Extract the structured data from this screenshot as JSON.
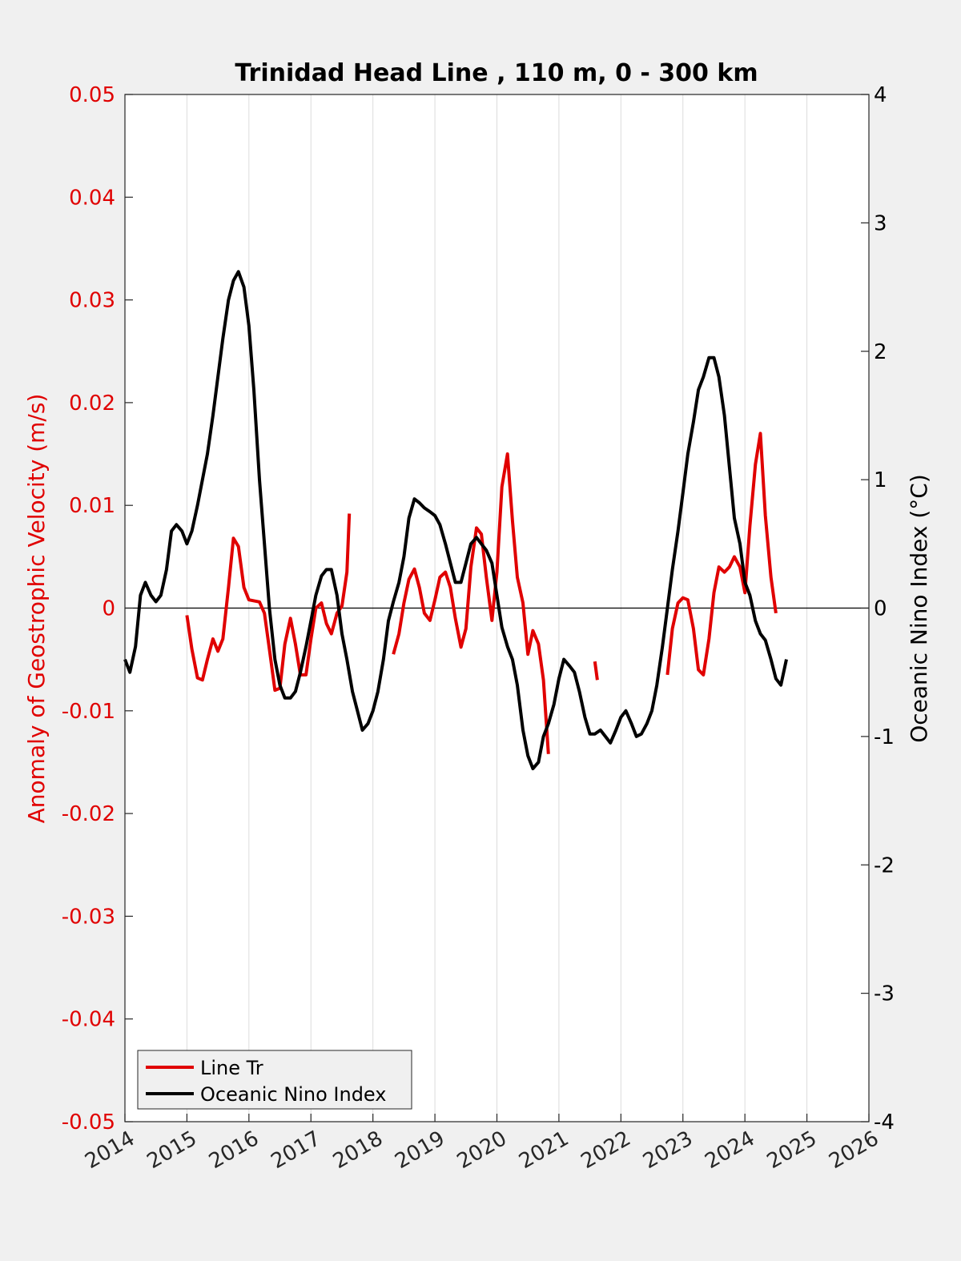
{
  "chart_data": {
    "type": "line",
    "title": "Trinidad Head Line , 110 m, 0 - 300 km",
    "xlabel": "",
    "ylabel_left": "Anomaly of Geostrophic Velocity (m/s)",
    "ylabel_right": "Oceanic Nino Index (°C)",
    "xlim": [
      2014,
      2026
    ],
    "ylim_left": [
      -0.05,
      0.05
    ],
    "ylim_right": [
      -4,
      4
    ],
    "x_ticks": [
      "2014",
      "2015",
      "2016",
      "2017",
      "2018",
      "2019",
      "2020",
      "2021",
      "2022",
      "2023",
      "2024",
      "2025",
      "2026"
    ],
    "y_ticks_left": [
      "-0.05",
      "-0.04",
      "-0.03",
      "-0.02",
      "-0.01",
      "0",
      "0.01",
      "0.02",
      "0.03",
      "0.04",
      "0.05"
    ],
    "y_ticks_right": [
      "-4",
      "-3",
      "-2",
      "-1",
      "0",
      "1",
      "2",
      "3",
      "4"
    ],
    "grid": "vertical",
    "legend_position": "bottom-left",
    "colors": {
      "left_axis": "#e00000",
      "right_axis": "#000000"
    },
    "series": [
      {
        "name": "Line Tr",
        "color": "#e00000",
        "axis": "left",
        "segments": [
          [
            [
              2015.0,
              -0.0007
            ],
            [
              2015.08,
              -0.004
            ],
            [
              2015.17,
              -0.0068
            ],
            [
              2015.25,
              -0.007
            ],
            [
              2015.33,
              -0.005
            ],
            [
              2015.42,
              -0.003
            ],
            [
              2015.5,
              -0.0042
            ],
            [
              2015.58,
              -0.003
            ],
            [
              2015.67,
              0.002
            ],
            [
              2015.75,
              0.0068
            ],
            [
              2015.83,
              0.006
            ],
            [
              2015.92,
              0.002
            ],
            [
              2016.0,
              0.0008
            ],
            [
              2016.17,
              0.0006
            ],
            [
              2016.25,
              -0.0005
            ],
            [
              2016.33,
              -0.004
            ],
            [
              2016.42,
              -0.008
            ],
            [
              2016.5,
              -0.0078
            ],
            [
              2016.58,
              -0.0035
            ],
            [
              2016.67,
              -0.001
            ],
            [
              2016.75,
              -0.0035
            ],
            [
              2016.83,
              -0.0065
            ],
            [
              2016.92,
              -0.0065
            ],
            [
              2017.0,
              -0.003
            ],
            [
              2017.08,
              0.0
            ],
            [
              2017.17,
              0.0005
            ],
            [
              2017.25,
              -0.0015
            ],
            [
              2017.33,
              -0.0025
            ],
            [
              2017.42,
              -0.0005
            ],
            [
              2017.5,
              0.0002
            ],
            [
              2017.58,
              0.0035
            ],
            [
              2017.62,
              0.0092
            ]
          ],
          [
            [
              2018.33,
              -0.0045
            ],
            [
              2018.42,
              -0.0025
            ],
            [
              2018.5,
              0.0005
            ],
            [
              2018.58,
              0.0028
            ],
            [
              2018.67,
              0.0038
            ],
            [
              2018.75,
              0.002
            ],
            [
              2018.83,
              -0.0005
            ],
            [
              2018.92,
              -0.0012
            ],
            [
              2019.0,
              0.0008
            ],
            [
              2019.08,
              0.003
            ],
            [
              2019.17,
              0.0035
            ],
            [
              2019.25,
              0.002
            ],
            [
              2019.33,
              -0.001
            ],
            [
              2019.42,
              -0.0038
            ],
            [
              2019.5,
              -0.002
            ],
            [
              2019.58,
              0.004
            ],
            [
              2019.67,
              0.0078
            ],
            [
              2019.75,
              0.0072
            ],
            [
              2019.83,
              0.003
            ],
            [
              2019.92,
              -0.0012
            ],
            [
              2020.0,
              0.0035
            ],
            [
              2020.08,
              0.0118
            ],
            [
              2020.17,
              0.015
            ],
            [
              2020.25,
              0.0085
            ],
            [
              2020.33,
              0.003
            ],
            [
              2020.42,
              0.0005
            ],
            [
              2020.5,
              -0.0045
            ],
            [
              2020.58,
              -0.0022
            ],
            [
              2020.67,
              -0.0035
            ],
            [
              2020.75,
              -0.007
            ],
            [
              2020.83,
              -0.0142
            ]
          ],
          [
            [
              2021.58,
              -0.0052
            ],
            [
              2021.62,
              -0.007
            ]
          ],
          [
            [
              2022.75,
              -0.0065
            ],
            [
              2022.83,
              -0.002
            ],
            [
              2022.92,
              0.0005
            ],
            [
              2023.0,
              0.001
            ],
            [
              2023.08,
              0.0008
            ],
            [
              2023.17,
              -0.002
            ],
            [
              2023.25,
              -0.006
            ],
            [
              2023.33,
              -0.0065
            ],
            [
              2023.42,
              -0.003
            ],
            [
              2023.5,
              0.0015
            ],
            [
              2023.58,
              0.004
            ],
            [
              2023.67,
              0.0035
            ],
            [
              2023.75,
              0.004
            ],
            [
              2023.83,
              0.005
            ],
            [
              2023.92,
              0.004
            ],
            [
              2024.0,
              0.0015
            ],
            [
              2024.08,
              0.008
            ],
            [
              2024.17,
              0.014
            ],
            [
              2024.25,
              0.017
            ],
            [
              2024.33,
              0.009
            ],
            [
              2024.42,
              0.003
            ],
            [
              2024.5,
              -0.0005
            ]
          ]
        ]
      },
      {
        "name": "Oceanic Nino Index",
        "color": "#000000",
        "axis": "right",
        "segments": [
          [
            [
              2014.0,
              -0.4
            ],
            [
              2014.08,
              -0.5
            ],
            [
              2014.17,
              -0.3
            ],
            [
              2014.25,
              0.1
            ],
            [
              2014.33,
              0.2
            ],
            [
              2014.42,
              0.1
            ],
            [
              2014.5,
              0.05
            ],
            [
              2014.58,
              0.1
            ],
            [
              2014.67,
              0.3
            ],
            [
              2014.75,
              0.6
            ],
            [
              2014.83,
              0.65
            ],
            [
              2014.92,
              0.6
            ],
            [
              2015.0,
              0.5
            ],
            [
              2015.08,
              0.6
            ],
            [
              2015.17,
              0.8
            ],
            [
              2015.25,
              1.0
            ],
            [
              2015.33,
              1.2
            ],
            [
              2015.42,
              1.5
            ],
            [
              2015.5,
              1.8
            ],
            [
              2015.58,
              2.1
            ],
            [
              2015.67,
              2.4
            ],
            [
              2015.75,
              2.55
            ],
            [
              2015.83,
              2.62
            ],
            [
              2015.92,
              2.5
            ],
            [
              2016.0,
              2.2
            ],
            [
              2016.08,
              1.7
            ],
            [
              2016.17,
              1.0
            ],
            [
              2016.25,
              0.5
            ],
            [
              2016.33,
              0.0
            ],
            [
              2016.42,
              -0.4
            ],
            [
              2016.5,
              -0.6
            ],
            [
              2016.58,
              -0.7
            ],
            [
              2016.67,
              -0.7
            ],
            [
              2016.75,
              -0.65
            ],
            [
              2016.83,
              -0.5
            ],
            [
              2016.92,
              -0.3
            ],
            [
              2017.0,
              -0.1
            ],
            [
              2017.08,
              0.1
            ],
            [
              2017.17,
              0.25
            ],
            [
              2017.25,
              0.3
            ],
            [
              2017.33,
              0.3
            ],
            [
              2017.42,
              0.1
            ],
            [
              2017.5,
              -0.2
            ],
            [
              2017.58,
              -0.4
            ],
            [
              2017.67,
              -0.65
            ],
            [
              2017.75,
              -0.8
            ],
            [
              2017.83,
              -0.95
            ],
            [
              2017.92,
              -0.9
            ],
            [
              2018.0,
              -0.8
            ],
            [
              2018.08,
              -0.65
            ],
            [
              2018.17,
              -0.4
            ],
            [
              2018.25,
              -0.1
            ],
            [
              2018.33,
              0.05
            ],
            [
              2018.42,
              0.2
            ],
            [
              2018.5,
              0.4
            ],
            [
              2018.58,
              0.7
            ],
            [
              2018.67,
              0.85
            ],
            [
              2018.75,
              0.82
            ],
            [
              2018.83,
              0.78
            ],
            [
              2018.92,
              0.75
            ],
            [
              2019.0,
              0.72
            ],
            [
              2019.08,
              0.65
            ],
            [
              2019.17,
              0.5
            ],
            [
              2019.25,
              0.35
            ],
            [
              2019.33,
              0.2
            ],
            [
              2019.42,
              0.2
            ],
            [
              2019.5,
              0.35
            ],
            [
              2019.58,
              0.5
            ],
            [
              2019.67,
              0.55
            ],
            [
              2019.75,
              0.5
            ],
            [
              2019.83,
              0.45
            ],
            [
              2019.92,
              0.35
            ],
            [
              2020.0,
              0.1
            ],
            [
              2020.08,
              -0.15
            ],
            [
              2020.17,
              -0.3
            ],
            [
              2020.25,
              -0.4
            ],
            [
              2020.33,
              -0.6
            ],
            [
              2020.42,
              -0.95
            ],
            [
              2020.5,
              -1.15
            ],
            [
              2020.58,
              -1.25
            ],
            [
              2020.67,
              -1.2
            ],
            [
              2020.75,
              -1.0
            ],
            [
              2020.83,
              -0.9
            ],
            [
              2020.92,
              -0.75
            ],
            [
              2021.0,
              -0.55
            ],
            [
              2021.08,
              -0.4
            ],
            [
              2021.17,
              -0.45
            ],
            [
              2021.25,
              -0.5
            ],
            [
              2021.33,
              -0.65
            ],
            [
              2021.42,
              -0.85
            ],
            [
              2021.5,
              -0.98
            ],
            [
              2021.58,
              -0.98
            ],
            [
              2021.67,
              -0.95
            ],
            [
              2021.75,
              -1.0
            ],
            [
              2021.83,
              -1.05
            ],
            [
              2021.92,
              -0.95
            ],
            [
              2022.0,
              -0.85
            ],
            [
              2022.08,
              -0.8
            ],
            [
              2022.17,
              -0.9
            ],
            [
              2022.25,
              -1.0
            ],
            [
              2022.33,
              -0.98
            ],
            [
              2022.42,
              -0.9
            ],
            [
              2022.5,
              -0.8
            ],
            [
              2022.58,
              -0.6
            ],
            [
              2022.67,
              -0.3
            ],
            [
              2022.75,
              0.0
            ],
            [
              2022.83,
              0.3
            ],
            [
              2022.92,
              0.6
            ],
            [
              2023.0,
              0.9
            ],
            [
              2023.08,
              1.2
            ],
            [
              2023.17,
              1.45
            ],
            [
              2023.25,
              1.7
            ],
            [
              2023.33,
              1.8
            ],
            [
              2023.42,
              1.95
            ],
            [
              2023.5,
              1.95
            ],
            [
              2023.58,
              1.8
            ],
            [
              2023.67,
              1.5
            ],
            [
              2023.75,
              1.1
            ],
            [
              2023.83,
              0.7
            ],
            [
              2023.92,
              0.5
            ],
            [
              2024.0,
              0.2
            ],
            [
              2024.08,
              0.1
            ],
            [
              2024.17,
              -0.1
            ],
            [
              2024.25,
              -0.2
            ],
            [
              2024.33,
              -0.25
            ],
            [
              2024.42,
              -0.4
            ],
            [
              2024.5,
              -0.55
            ],
            [
              2024.58,
              -0.6
            ],
            [
              2024.67,
              -0.4
            ]
          ]
        ]
      }
    ],
    "legend": [
      "Line Tr",
      "Oceanic Nino Index"
    ]
  }
}
